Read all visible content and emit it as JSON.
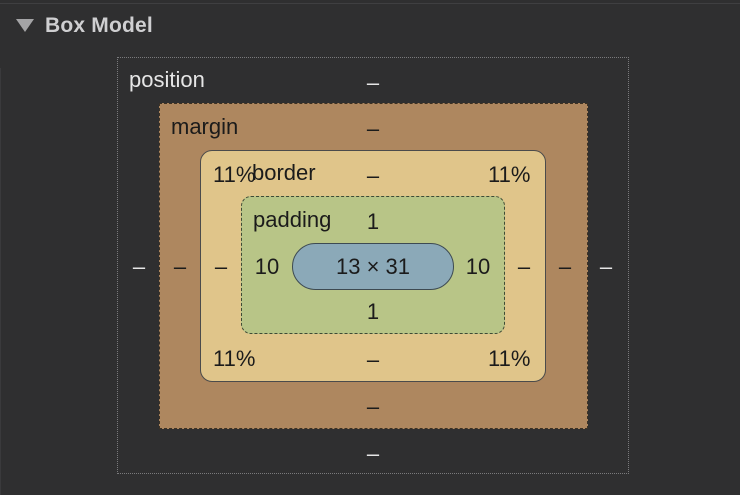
{
  "section": {
    "title": "Box Model",
    "collapse_icon": "disclosure-triangle-down-icon"
  },
  "box_model": {
    "position": {
      "label": "position",
      "top": "–",
      "right": "–",
      "bottom": "–",
      "left": "–"
    },
    "margin": {
      "label": "margin",
      "top": "–",
      "right": "–",
      "bottom": "–",
      "left": "–"
    },
    "border": {
      "label": "border",
      "top": "–",
      "right": "–",
      "bottom": "–",
      "left": "–",
      "radius_top_left": "11%",
      "radius_top_right": "11%",
      "radius_bottom_left": "11%",
      "radius_bottom_right": "11%"
    },
    "padding": {
      "label": "padding",
      "top": "1",
      "right": "10",
      "bottom": "1",
      "left": "10"
    },
    "content": {
      "size": "13 × 31"
    }
  },
  "colors": {
    "background": "#2f2f30",
    "margin": "#ae875f",
    "border": "#e0c58a",
    "padding": "#b8c587",
    "content": "#8ba9b8"
  }
}
